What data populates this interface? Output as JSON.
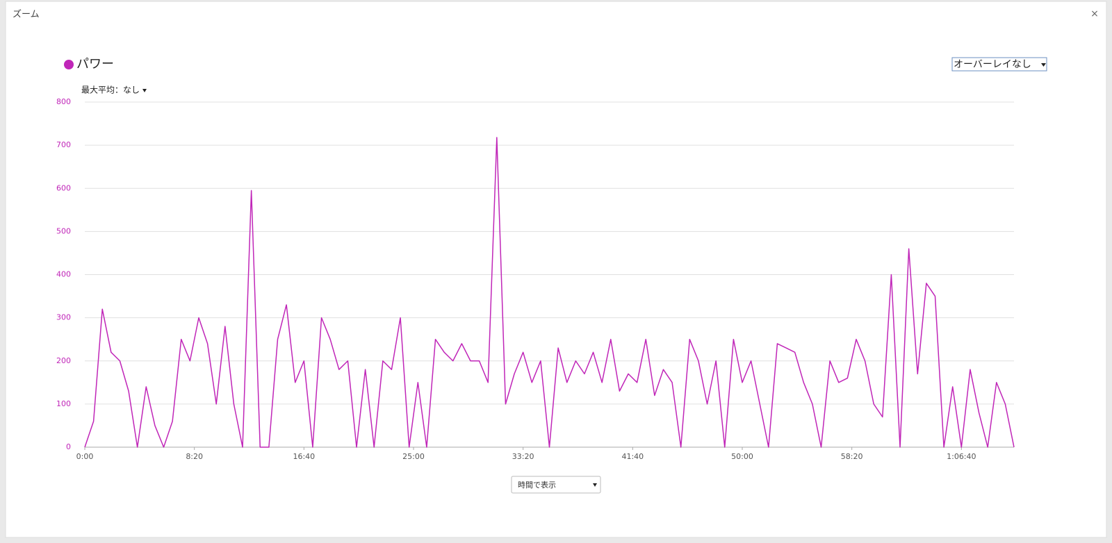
{
  "ui": {
    "title": "ズーム",
    "close": "×",
    "overlay": "オーバーレイなし",
    "max_average": "最大平均：なし",
    "x_mode": "時間で表示"
  },
  "chart_data": {
    "type": "line",
    "x": [
      0,
      40,
      80,
      120,
      160,
      200,
      240,
      280,
      320,
      360,
      400,
      440,
      480,
      520,
      560,
      600,
      640,
      680,
      720,
      760,
      800,
      840,
      880,
      920,
      960,
      1000,
      1040,
      1080,
      1120,
      1160,
      1200,
      1240,
      1280,
      1320,
      1360,
      1400,
      1440,
      1480,
      1520,
      1560,
      1600,
      1640,
      1680,
      1720,
      1760,
      1800,
      1840,
      1880,
      1920,
      1960,
      2000,
      2040,
      2080,
      2120,
      2160,
      2200,
      2240,
      2280,
      2320,
      2360,
      2400,
      2440,
      2480,
      2520,
      2560,
      2600,
      2640,
      2680,
      2720,
      2760,
      2800,
      2840,
      2880,
      2920,
      2960,
      3000,
      3040,
      3080,
      3120,
      3160,
      3200,
      3240,
      3280,
      3320,
      3360,
      3400,
      3440,
      3480,
      3520,
      3560,
      3600,
      3640,
      3680,
      3720,
      3760,
      3800,
      3840,
      3880,
      3920,
      3960,
      4000,
      4040,
      4080,
      4120,
      4160,
      4200,
      4240
    ],
    "series": [
      {
        "name": "パワー",
        "color": "#c026b8",
        "values": [
          0,
          60,
          320,
          220,
          200,
          130,
          0,
          140,
          50,
          0,
          60,
          250,
          200,
          300,
          240,
          100,
          280,
          100,
          0,
          595,
          0,
          0,
          250,
          330,
          150,
          200,
          0,
          300,
          250,
          180,
          200,
          0,
          180,
          0,
          200,
          180,
          300,
          0,
          150,
          0,
          250,
          220,
          200,
          240,
          200,
          200,
          150,
          718,
          100,
          170,
          220,
          150,
          200,
          0,
          230,
          150,
          200,
          170,
          220,
          150,
          250,
          130,
          170,
          150,
          250,
          120,
          180,
          150,
          0,
          250,
          200,
          100,
          200,
          0,
          250,
          150,
          200,
          100,
          0,
          240,
          230,
          220,
          150,
          100,
          0,
          200,
          150,
          160,
          250,
          200,
          100,
          70,
          400,
          0,
          460,
          170,
          380,
          350,
          0,
          140,
          0,
          180,
          80,
          0,
          150,
          100,
          0
        ]
      }
    ],
    "xlim": [
      0,
      4240
    ],
    "ylim": [
      0,
      800
    ],
    "xticks": [
      {
        "value": 0,
        "label": "0:00"
      },
      {
        "value": 500,
        "label": "8:20"
      },
      {
        "value": 1000,
        "label": "16:40"
      },
      {
        "value": 1500,
        "label": "25:00"
      },
      {
        "value": 2000,
        "label": "33:20"
      },
      {
        "value": 2500,
        "label": "41:40"
      },
      {
        "value": 3000,
        "label": "50:00"
      },
      {
        "value": 3500,
        "label": "58:20"
      },
      {
        "value": 4000,
        "label": "1:06:40"
      }
    ],
    "yticks": [
      0,
      100,
      200,
      300,
      400,
      500,
      600,
      700,
      800
    ],
    "grid": true
  }
}
